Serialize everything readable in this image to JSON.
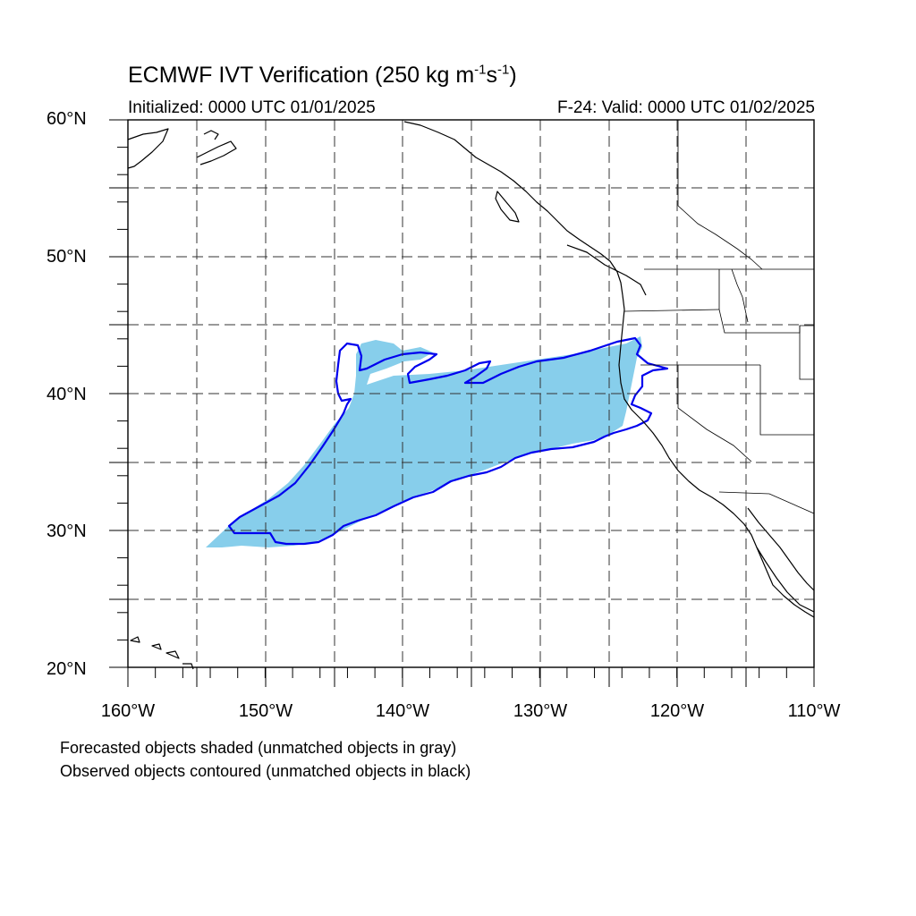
{
  "title": {
    "prefix": "ECMWF IVT Verification (250 kg m",
    "exp1": "-1",
    "mid": "s",
    "exp2": "-1",
    "suffix": ")"
  },
  "subtitle_left": "Initialized: 0000 UTC 01/01/2025",
  "subtitle_right": "F-24: Valid: 0000 UTC 01/02/2025",
  "lat_labels": [
    "60°N",
    "50°N",
    "40°N",
    "30°N",
    "20°N"
  ],
  "lon_labels": [
    "160°W",
    "150°W",
    "140°W",
    "130°W",
    "120°W",
    "110°W"
  ],
  "notes": [
    "Forecasted objects shaded (unmatched objects in gray)",
    "Observed objects contoured (unmatched objects in black)"
  ],
  "colors": {
    "forecast_fill": "#87ceeb",
    "observed_contour": "#0000ee",
    "coast": "#000000"
  }
}
